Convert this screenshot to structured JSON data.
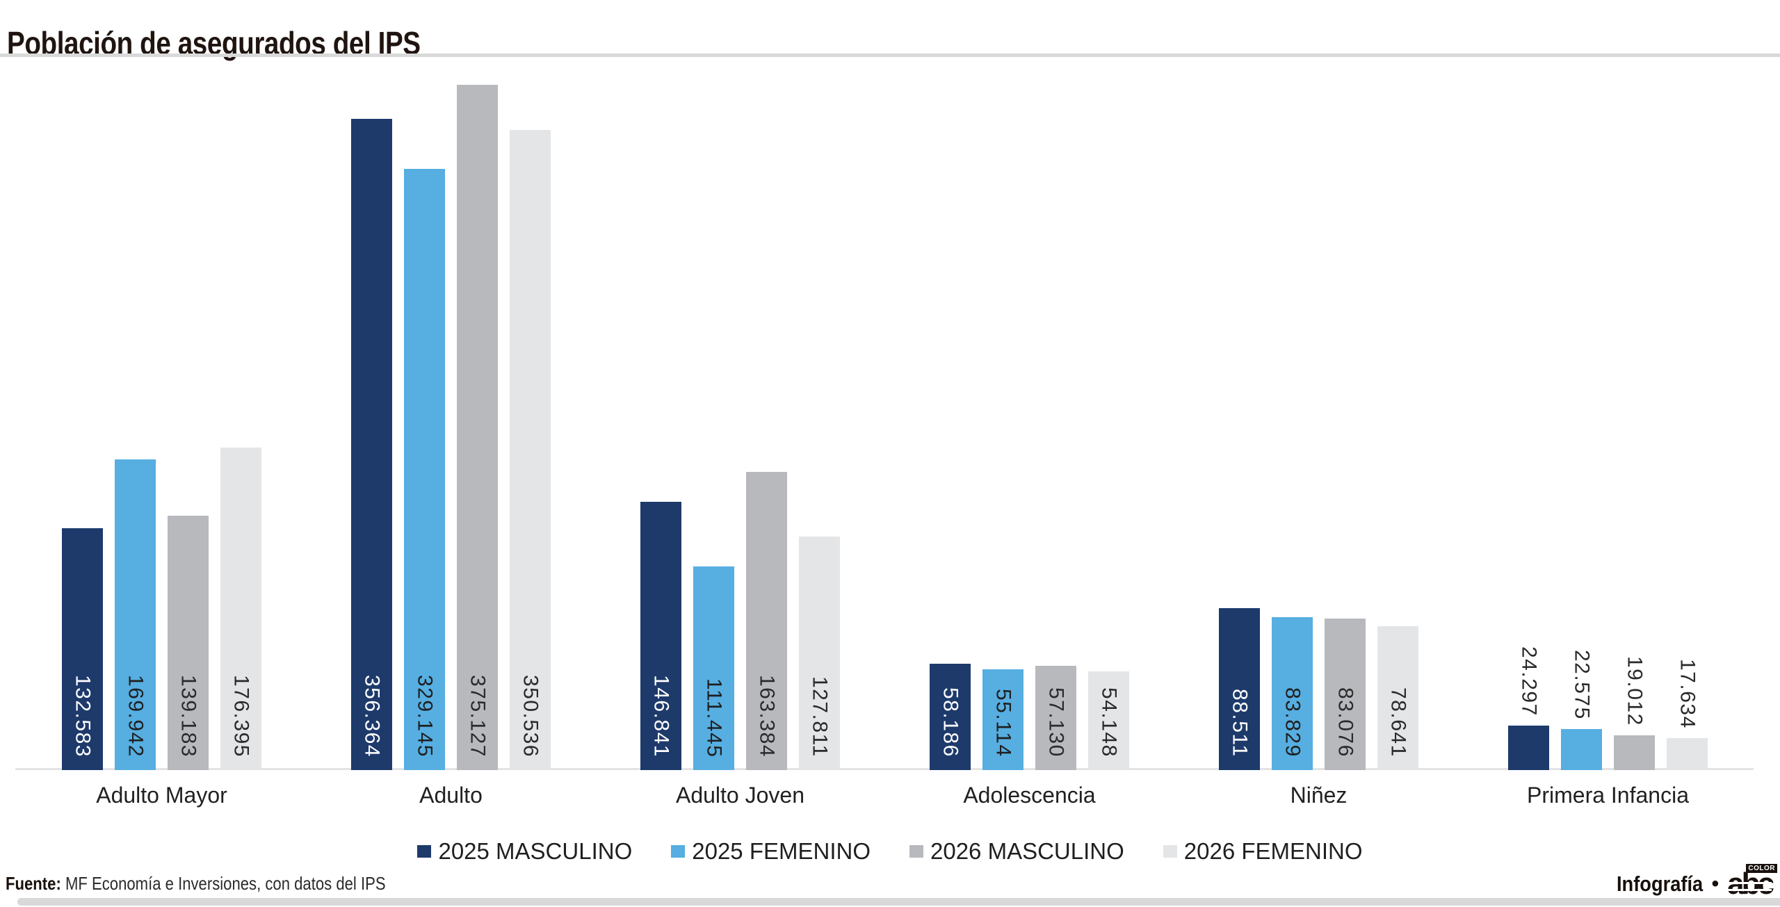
{
  "title": "Población de asegurados del IPS",
  "colors": {
    "masculino_2025": "#1d3a6b",
    "femenino_2025": "#56aee1",
    "masculino_2026": "#b8b9bd",
    "femenino_2026": "#e3e5e7",
    "rule": "#d9d9d9",
    "axis": "#e3e3e3",
    "title_text": "#1f1410"
  },
  "chart_data": {
    "type": "bar",
    "title": "Población de asegurados del IPS",
    "categories": [
      "Adulto Mayor",
      "Adulto",
      "Adulto Joven",
      "Adolescencia",
      "Niñez",
      "Primera Infancia"
    ],
    "series": [
      {
        "name": "2025 MASCULINO",
        "color": "#1d3a6b",
        "label_color": "#ffffff",
        "values": [
          132583,
          356364,
          146841,
          58186,
          88511,
          24297
        ],
        "labels": [
          "132.583",
          "356.364",
          "146.841",
          "58.186",
          "88.511",
          "24.297"
        ]
      },
      {
        "name": "2025 FEMENINO",
        "color": "#56aee1",
        "label_color": "#1f1f1f",
        "values": [
          169942,
          329145,
          111445,
          55114,
          83829,
          22575
        ],
        "labels": [
          "169.942",
          "329.145",
          "111.445",
          "55.114",
          "83.829",
          "22.575"
        ]
      },
      {
        "name": "2026 MASCULINO",
        "color": "#b8b9bd",
        "label_color": "#2a2a2a",
        "values": [
          139183,
          375127,
          163384,
          57130,
          83076,
          19012
        ],
        "labels": [
          "139.183",
          "375.127",
          "163.384",
          "57.130",
          "83.076",
          "19.012"
        ]
      },
      {
        "name": "2026 FEMENINO",
        "color": "#e3e5e7",
        "label_color": "#2a2a2a",
        "values": [
          176395,
          350536,
          127811,
          54148,
          78641,
          17634
        ],
        "labels": [
          "176.395",
          "350.536",
          "127.811",
          "54.148",
          "78.641",
          "17.634"
        ]
      }
    ],
    "ylim": [
      0,
      375127
    ],
    "grid": false,
    "legend_position": "bottom",
    "value_labels_rotated": true
  },
  "legend": [
    {
      "label": "2025 MASCULINO",
      "color": "#1d3a6b"
    },
    {
      "label": "2025 FEMENINO",
      "color": "#56aee1"
    },
    {
      "label": "2026 MASCULINO",
      "color": "#b8b9bd"
    },
    {
      "label": "2026 FEMENINO",
      "color": "#e3e5e7"
    }
  ],
  "footer": {
    "source_label": "Fuente:",
    "source_text": " MF Economía e Inversiones, con datos del IPS",
    "credit_text": "Infografía",
    "credit_bullet": "•",
    "logo_text": "abc",
    "logo_tag": "COLOR"
  }
}
